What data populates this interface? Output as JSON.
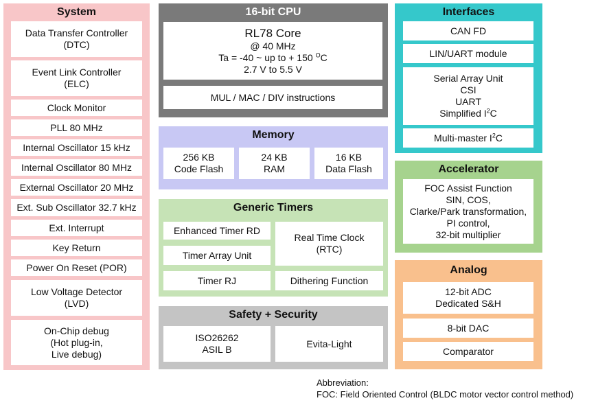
{
  "system": {
    "title": "System",
    "items": [
      {
        "line1": "Data Transfer Controller",
        "line2": "(DTC)"
      },
      {
        "line1": "Event Link Controller",
        "line2": "(ELC)"
      },
      {
        "line1": "Clock Monitor"
      },
      {
        "line1": "PLL 80 MHz"
      },
      {
        "line1": "Internal Oscillator 15 kHz"
      },
      {
        "line1": "Internal Oscillator 80 MHz"
      },
      {
        "line1": "External Oscillator 20 MHz"
      },
      {
        "line1": "Ext. Sub Oscillator 32.7 kHz"
      },
      {
        "line1": "Ext. Interrupt"
      },
      {
        "line1": "Key Return"
      },
      {
        "line1": "Power On Reset (POR)"
      },
      {
        "line1": "Low Voltage Detector",
        "line2": "(LVD)"
      },
      {
        "line1": "On-Chip debug",
        "line2": "(Hot plug-in,",
        "line3": "Live debug)"
      }
    ]
  },
  "cpu": {
    "title": "16-bit CPU",
    "core_name": "RL78 Core",
    "freq": "@ 40 MHz",
    "temp_prefix": "Ta = -40 ~ up to + 150 ",
    "temp_sup": "O",
    "temp_unit": "C",
    "voltage": "2.7 V to 5.5 V",
    "instructions": "MUL / MAC / DIV instructions"
  },
  "memory": {
    "title": "Memory",
    "items": [
      {
        "size": "256 KB",
        "type": "Code Flash"
      },
      {
        "size": "24 KB",
        "type": "RAM"
      },
      {
        "size": "16 KB",
        "type": "Data Flash"
      }
    ]
  },
  "timers": {
    "title": "Generic Timers",
    "rd": "Enhanced Timer RD",
    "array": "Timer Array Unit",
    "rj": "Timer RJ",
    "rtc_line1": "Real Time Clock",
    "rtc_line2": "(RTC)",
    "dithering": "Dithering Function"
  },
  "safety": {
    "title": "Safety + Security",
    "iso_line1": "ISO26262",
    "iso_line2": "ASIL B",
    "evita": "Evita-Light"
  },
  "interfaces": {
    "title": "Interfaces",
    "can": "CAN FD",
    "lin": "LIN/UART module",
    "sau_line1": "Serial Array Unit",
    "sau_line2": "CSI",
    "sau_line3": "UART",
    "sau_line4_prefix": "Simplified I",
    "sau_line4_sup": "2",
    "sau_line4_suffix": "C",
    "mm_prefix": "Multi-master I",
    "mm_sup": "2",
    "mm_suffix": "C"
  },
  "accelerator": {
    "title": "Accelerator",
    "lines": [
      "FOC Assist Function",
      "SIN, COS,",
      "Clarke/Park transformation,",
      "PI control,",
      "32-bit multiplier"
    ]
  },
  "analog": {
    "title": "Analog",
    "adc_line1": "12-bit ADC",
    "adc_line2": "Dedicated S&H",
    "dac": "8-bit DAC",
    "comparator": "Comparator"
  },
  "abbreviation": {
    "heading": "Abbreviation:",
    "text": "FOC: Field Oriented Control (BLDC motor vector control method)"
  }
}
